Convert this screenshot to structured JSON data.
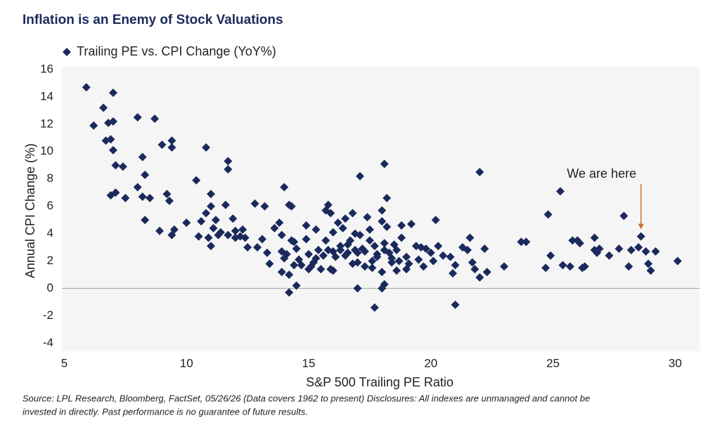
{
  "chart_data": {
    "type": "scatter",
    "title": "Inflation is an Enemy of Stock Valuations",
    "x_label": "S&P 500 Trailing PE Ratio",
    "y_label": "Annual CPI Change (%)",
    "xlim": [
      4.9,
      31
    ],
    "ylim": [
      -4.6,
      16.2
    ],
    "xticks": [
      5,
      10,
      15,
      20,
      25,
      30
    ],
    "yticks": [
      -4,
      -2,
      0,
      2,
      4,
      6,
      8,
      10,
      12,
      14,
      16
    ],
    "zero_line": true,
    "legend": "top-left",
    "annotation": {
      "text": "We are here",
      "x": 28.6,
      "y": 3.8
    },
    "source": [
      "Source: LPL Research, Bloomberg, FactSet, 05/26/26 (Data covers 1962 to present) Disclosures: All indexes are unmanaged and cannot be",
      "invested in directly. Past performance is no guarantee of future results."
    ],
    "x": [
      5.9,
      6.6,
      7.0,
      6.2,
      6.8,
      7.0,
      6.7,
      6.9,
      7.0,
      7.1,
      7.4,
      6.9,
      7.1,
      7.5,
      8.0,
      8.7,
      8.2,
      8.3,
      9.0,
      9.4,
      9.4,
      8.0,
      8.2,
      8.5,
      9.2,
      9.3,
      8.3,
      8.9,
      9.5,
      9.4,
      10.0,
      10.4,
      10.8,
      10.6,
      10.8,
      11.0,
      11.0,
      11.1,
      10.5,
      10.9,
      11.0,
      11.2,
      11.4,
      11.7,
      11.7,
      11.6,
      11.7,
      11.9,
      12.0,
      12.2,
      12.3,
      12.5,
      12.8,
      12.9,
      13.2,
      13.1,
      13.3,
      13.4,
      13.6,
      13.8,
      14.0,
      13.9,
      14.2,
      14.3,
      13.9,
      14.0,
      14.1,
      14.2,
      14.2,
      14.5,
      14.4,
      14.3,
      14.4,
      14.5,
      14.6,
      14.9,
      14.9,
      15.0,
      15.1,
      15.2,
      15.3,
      15.4,
      15.5,
      15.6,
      15.7,
      15.8,
      15.9,
      15.7,
      15.8,
      15.9,
      16.0,
      16.1,
      16.2,
      16.3,
      16.4,
      16.5,
      16.5,
      16.6,
      16.7,
      16.8,
      16.8,
      16.9,
      17.0,
      17.0,
      17.1,
      17.1,
      17.2,
      17.3,
      17.4,
      17.5,
      17.5,
      17.6,
      17.6,
      17.7,
      17.8,
      17.7,
      18.0,
      18.0,
      18.1,
      18.1,
      18.0,
      18.0,
      18.1,
      18.1,
      18.2,
      18.2,
      18.3,
      18.4,
      18.5,
      18.6,
      18.7,
      18.8,
      18.8,
      19.0,
      19.1,
      19.2,
      19.4,
      19.5,
      19.6,
      19.7,
      19.8,
      20.0,
      20.1,
      20.2,
      20.3,
      20.5,
      20.8,
      20.9,
      21.0,
      21.0,
      21.3,
      21.5,
      21.6,
      21.7,
      21.8,
      22.0,
      22.0,
      22.2,
      22.3,
      23.0,
      23.7,
      23.9,
      24.7,
      24.8,
      24.9,
      25.3,
      25.4,
      25.7,
      25.8,
      26.0,
      26.1,
      26.2,
      26.3,
      26.7,
      26.7,
      26.8,
      26.9,
      27.3,
      27.7,
      27.9,
      28.2,
      28.1,
      28.5,
      28.6,
      28.8,
      28.9,
      29.0,
      29.2,
      30.1,
      16.0,
      16.3,
      16.9,
      17.3,
      15.3,
      15.0,
      14.7,
      16.6,
      17.8,
      18.4,
      19.0,
      16.0,
      17.0,
      18.6,
      13.9,
      12.4,
      12.0,
      11.3
    ],
    "series": [
      {
        "name": "Trailing PE vs. CPI Change (YoY%)",
        "color": "#1b2a5c",
        "values": [
          14.7,
          13.2,
          14.3,
          11.9,
          12.1,
          12.2,
          10.8,
          10.9,
          10.1,
          9.0,
          8.9,
          6.8,
          7.0,
          6.6,
          12.5,
          12.4,
          9.6,
          8.3,
          10.5,
          10.8,
          10.3,
          7.4,
          6.7,
          6.6,
          6.9,
          6.4,
          5.0,
          4.2,
          4.3,
          3.9,
          4.8,
          7.9,
          10.3,
          4.9,
          5.5,
          6.0,
          6.9,
          4.4,
          3.8,
          3.7,
          3.1,
          5.0,
          4.1,
          9.3,
          8.7,
          6.1,
          3.9,
          5.1,
          4.2,
          3.8,
          4.3,
          3.0,
          6.2,
          3.0,
          6.0,
          3.6,
          2.6,
          1.8,
          4.4,
          4.8,
          7.4,
          3.9,
          6.1,
          6.0,
          1.2,
          2.2,
          2.5,
          1.0,
          -0.3,
          0.2,
          1.7,
          3.5,
          3.4,
          2.9,
          2.1,
          4.6,
          3.6,
          2.5,
          1.6,
          1.9,
          4.3,
          2.8,
          1.4,
          2.4,
          5.7,
          6.1,
          5.5,
          3.5,
          2.8,
          1.4,
          4.1,
          2.3,
          4.8,
          3.1,
          4.4,
          2.4,
          5.1,
          2.6,
          3.5,
          5.5,
          1.8,
          4.0,
          2.6,
          0.0,
          8.2,
          3.9,
          2.9,
          1.6,
          5.2,
          3.5,
          4.3,
          2.0,
          1.5,
          3.1,
          2.3,
          -1.4,
          5.7,
          4.9,
          3.3,
          2.8,
          1.2,
          0.0,
          0.3,
          9.1,
          6.6,
          4.5,
          2.6,
          1.9,
          3.2,
          1.3,
          2.0,
          3.7,
          4.6,
          2.3,
          1.8,
          4.7,
          3.1,
          2.1,
          3.0,
          1.6,
          2.9,
          2.6,
          2.0,
          5.0,
          3.1,
          2.4,
          2.3,
          1.1,
          1.7,
          -1.2,
          3.0,
          2.8,
          3.7,
          1.9,
          1.4,
          8.5,
          0.8,
          2.9,
          1.2,
          1.6,
          3.4,
          3.4,
          1.5,
          5.4,
          2.4,
          7.1,
          1.7,
          1.6,
          3.5,
          3.5,
          3.3,
          1.5,
          1.6,
          3.7,
          2.8,
          2.6,
          2.9,
          2.4,
          2.9,
          5.3,
          2.8,
          1.6,
          3.0,
          3.8,
          2.7,
          1.8,
          1.3,
          2.7,
          2.0,
          2.7,
          2.8,
          2.8,
          2.7,
          2.2,
          1.4,
          1.7,
          3.2,
          2.5,
          2.2,
          1.4,
          1.3,
          1.9,
          2.8,
          2.7,
          3.7,
          3.7,
          3.9
        ]
      }
    ]
  }
}
